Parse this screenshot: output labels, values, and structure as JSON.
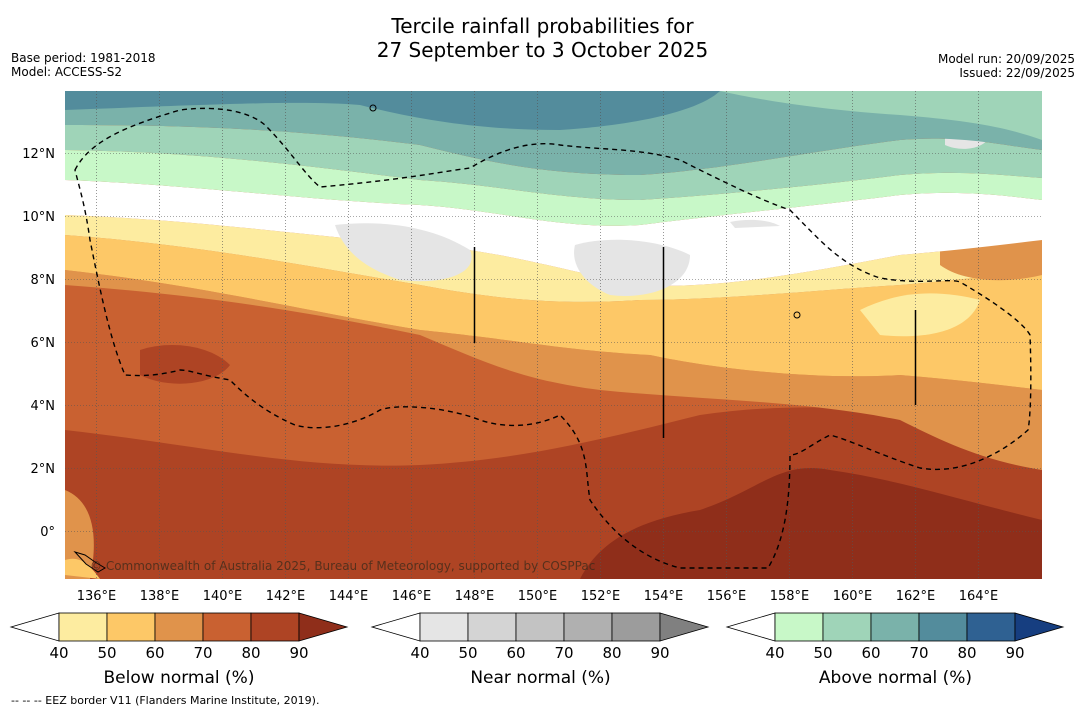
{
  "title_line1": "Tercile rainfall probabilities for",
  "title_line2": "27 September to 3 October 2025",
  "base_period": "Base period: 1981-2018",
  "model": "Model: ACCESS-S2",
  "model_run": "Model run: 20/09/2025",
  "issued": "Issued: 22/09/2025",
  "map": {
    "lon_labels": [
      "136°E",
      "138°E",
      "140°E",
      "142°E",
      "144°E",
      "146°E",
      "148°E",
      "150°E",
      "152°E",
      "154°E",
      "156°E",
      "158°E",
      "160°E",
      "162°E",
      "164°E"
    ],
    "lat_labels": [
      "12°N",
      "10°N",
      "8°N",
      "6°N",
      "4°N",
      "2°N",
      "0°"
    ],
    "copyright": "© Commonwealth of Australia 2025, Bureau of Meteorology, supported by COSPPac"
  },
  "colorbars": [
    {
      "label": "Below normal (%)",
      "ticks": [
        "40",
        "50",
        "60",
        "70",
        "80",
        "90"
      ],
      "colors": [
        "#ffffff",
        "#fdeca0",
        "#fdc867",
        "#e0934b",
        "#c96131",
        "#ae4424",
        "#8f2e1a"
      ]
    },
    {
      "label": "Near normal (%)",
      "ticks": [
        "40",
        "50",
        "60",
        "70",
        "80",
        "90"
      ],
      "colors": [
        "#ffffff",
        "#e5e5e5",
        "#d4d4d4",
        "#c3c3c3",
        "#b0b0b0",
        "#9c9c9c",
        "#808080"
      ]
    },
    {
      "label": "Above normal (%)",
      "ticks": [
        "40",
        "50",
        "60",
        "70",
        "80",
        "90"
      ],
      "colors": [
        "#ffffff",
        "#c8f8c8",
        "#9fd4b8",
        "#7ab2aa",
        "#538c9c",
        "#2f6192",
        "#163e80"
      ]
    }
  ],
  "footer": "--  --  -- EEZ border V11 (Flanders Marine Institute, 2019)."
}
